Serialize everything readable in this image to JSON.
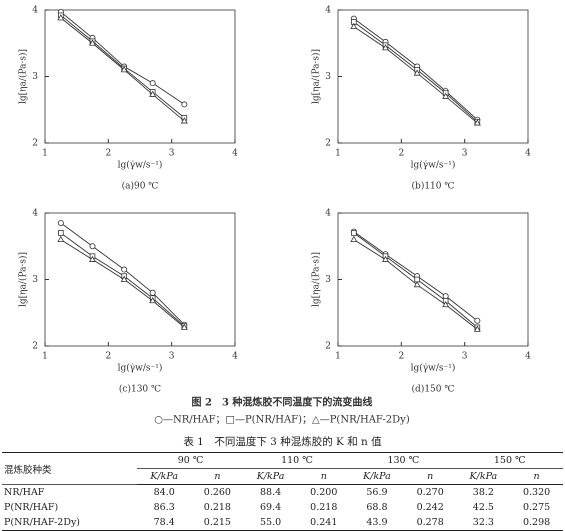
{
  "chart_data": [
    {
      "type": "scatter",
      "subtitle": "(a)90 ℃",
      "x_label": "lg(γ̇w/s⁻¹)",
      "y_label": "lg[ηa/(Pa·s)]",
      "xlim": [
        1,
        4
      ],
      "xticks": [
        1,
        2,
        3,
        4
      ],
      "ylim": [
        2,
        4
      ],
      "yticks": [
        2,
        3,
        4
      ],
      "lines": true,
      "x": [
        1.25,
        1.75,
        2.25,
        2.7,
        3.2
      ],
      "series": [
        {
          "marker": "circle",
          "color": "#333333",
          "values": [
            3.97,
            3.58,
            3.15,
            2.9,
            2.58
          ]
        },
        {
          "marker": "square",
          "color": "#333333",
          "values": [
            3.92,
            3.53,
            3.12,
            2.77,
            2.38
          ]
        },
        {
          "marker": "triangle",
          "color": "#333333",
          "values": [
            3.88,
            3.5,
            3.1,
            2.73,
            2.33
          ]
        }
      ]
    },
    {
      "type": "scatter",
      "subtitle": "(b)110 ℃",
      "x_label": "lg(γ̇w/s⁻¹)",
      "y_label": "lg[ηa/(Pa·s)]",
      "xlim": [
        1,
        4
      ],
      "xticks": [
        1,
        2,
        3,
        4
      ],
      "ylim": [
        2,
        4
      ],
      "yticks": [
        2,
        3,
        4
      ],
      "lines": true,
      "x": [
        1.25,
        1.75,
        2.25,
        2.7,
        3.2
      ],
      "series": [
        {
          "marker": "circle",
          "color": "#333333",
          "values": [
            3.87,
            3.52,
            3.15,
            2.78,
            2.35
          ]
        },
        {
          "marker": "square",
          "color": "#333333",
          "values": [
            3.82,
            3.47,
            3.1,
            2.75,
            2.32
          ]
        },
        {
          "marker": "triangle",
          "color": "#333333",
          "values": [
            3.75,
            3.43,
            3.05,
            2.7,
            2.3
          ]
        }
      ]
    },
    {
      "type": "scatter",
      "subtitle": "(c)130 ℃",
      "x_label": "lg(γ̇w/s⁻¹)",
      "y_label": "lg[ηa/(Pa·s)]",
      "xlim": [
        1,
        4
      ],
      "xticks": [
        1,
        2,
        3,
        4
      ],
      "ylim": [
        2,
        4
      ],
      "yticks": [
        2,
        3,
        4
      ],
      "lines": true,
      "x": [
        1.25,
        1.75,
        2.25,
        2.7,
        3.2
      ],
      "series": [
        {
          "marker": "circle",
          "color": "#333333",
          "values": [
            3.85,
            3.5,
            3.15,
            2.8,
            2.32
          ]
        },
        {
          "marker": "square",
          "color": "#333333",
          "values": [
            3.7,
            3.35,
            3.05,
            2.72,
            2.3
          ]
        },
        {
          "marker": "triangle",
          "color": "#333333",
          "values": [
            3.6,
            3.3,
            3.0,
            2.68,
            2.28
          ]
        }
      ]
    },
    {
      "type": "scatter",
      "subtitle": "(d)150 ℃",
      "x_label": "lg(γ̇w/s⁻¹)",
      "y_label": "lg[ηa/(Pa·s)]",
      "xlim": [
        1,
        4
      ],
      "xticks": [
        1,
        2,
        3,
        4
      ],
      "ylim": [
        2,
        4
      ],
      "yticks": [
        2,
        3,
        4
      ],
      "lines": true,
      "x": [
        1.25,
        1.75,
        2.25,
        2.7,
        3.2
      ],
      "series": [
        {
          "marker": "circle",
          "color": "#333333",
          "values": [
            3.72,
            3.38,
            3.05,
            2.75,
            2.38
          ]
        },
        {
          "marker": "square",
          "color": "#333333",
          "values": [
            3.7,
            3.35,
            3.0,
            2.68,
            2.28
          ]
        },
        {
          "marker": "triangle",
          "color": "#333333",
          "values": [
            3.6,
            3.3,
            2.92,
            2.62,
            2.25
          ]
        }
      ]
    }
  ],
  "figure": {
    "caption": "图 2　3 种混炼胶不同温度下的流变曲线",
    "legend": "○—NR/HAF；□—P(NR/HAF)；△—P(NR/HAF-2Dy)"
  },
  "table": {
    "title": "表 1　不同温度下 3 种混炼胶的 K 和 n 值",
    "row_header": "混炼胶种类",
    "groups": [
      "90 ℃",
      "110 ℃",
      "130 ℃",
      "150 ℃"
    ],
    "columns": [
      "K/kPa",
      "n"
    ],
    "rows": [
      [
        "NR/HAF",
        "84.0",
        "0.260",
        "88.4",
        "0.200",
        "56.9",
        "0.270",
        "38.2",
        "0.320"
      ],
      [
        "P(NR/HAF)",
        "86.3",
        "0.218",
        "69.4",
        "0.218",
        "68.8",
        "0.242",
        "42.5",
        "0.275"
      ],
      [
        "P(NR/HAF-2Dy)",
        "78.4",
        "0.215",
        "55.0",
        "0.241",
        "43.9",
        "0.278",
        "32.3",
        "0.298"
      ]
    ]
  }
}
